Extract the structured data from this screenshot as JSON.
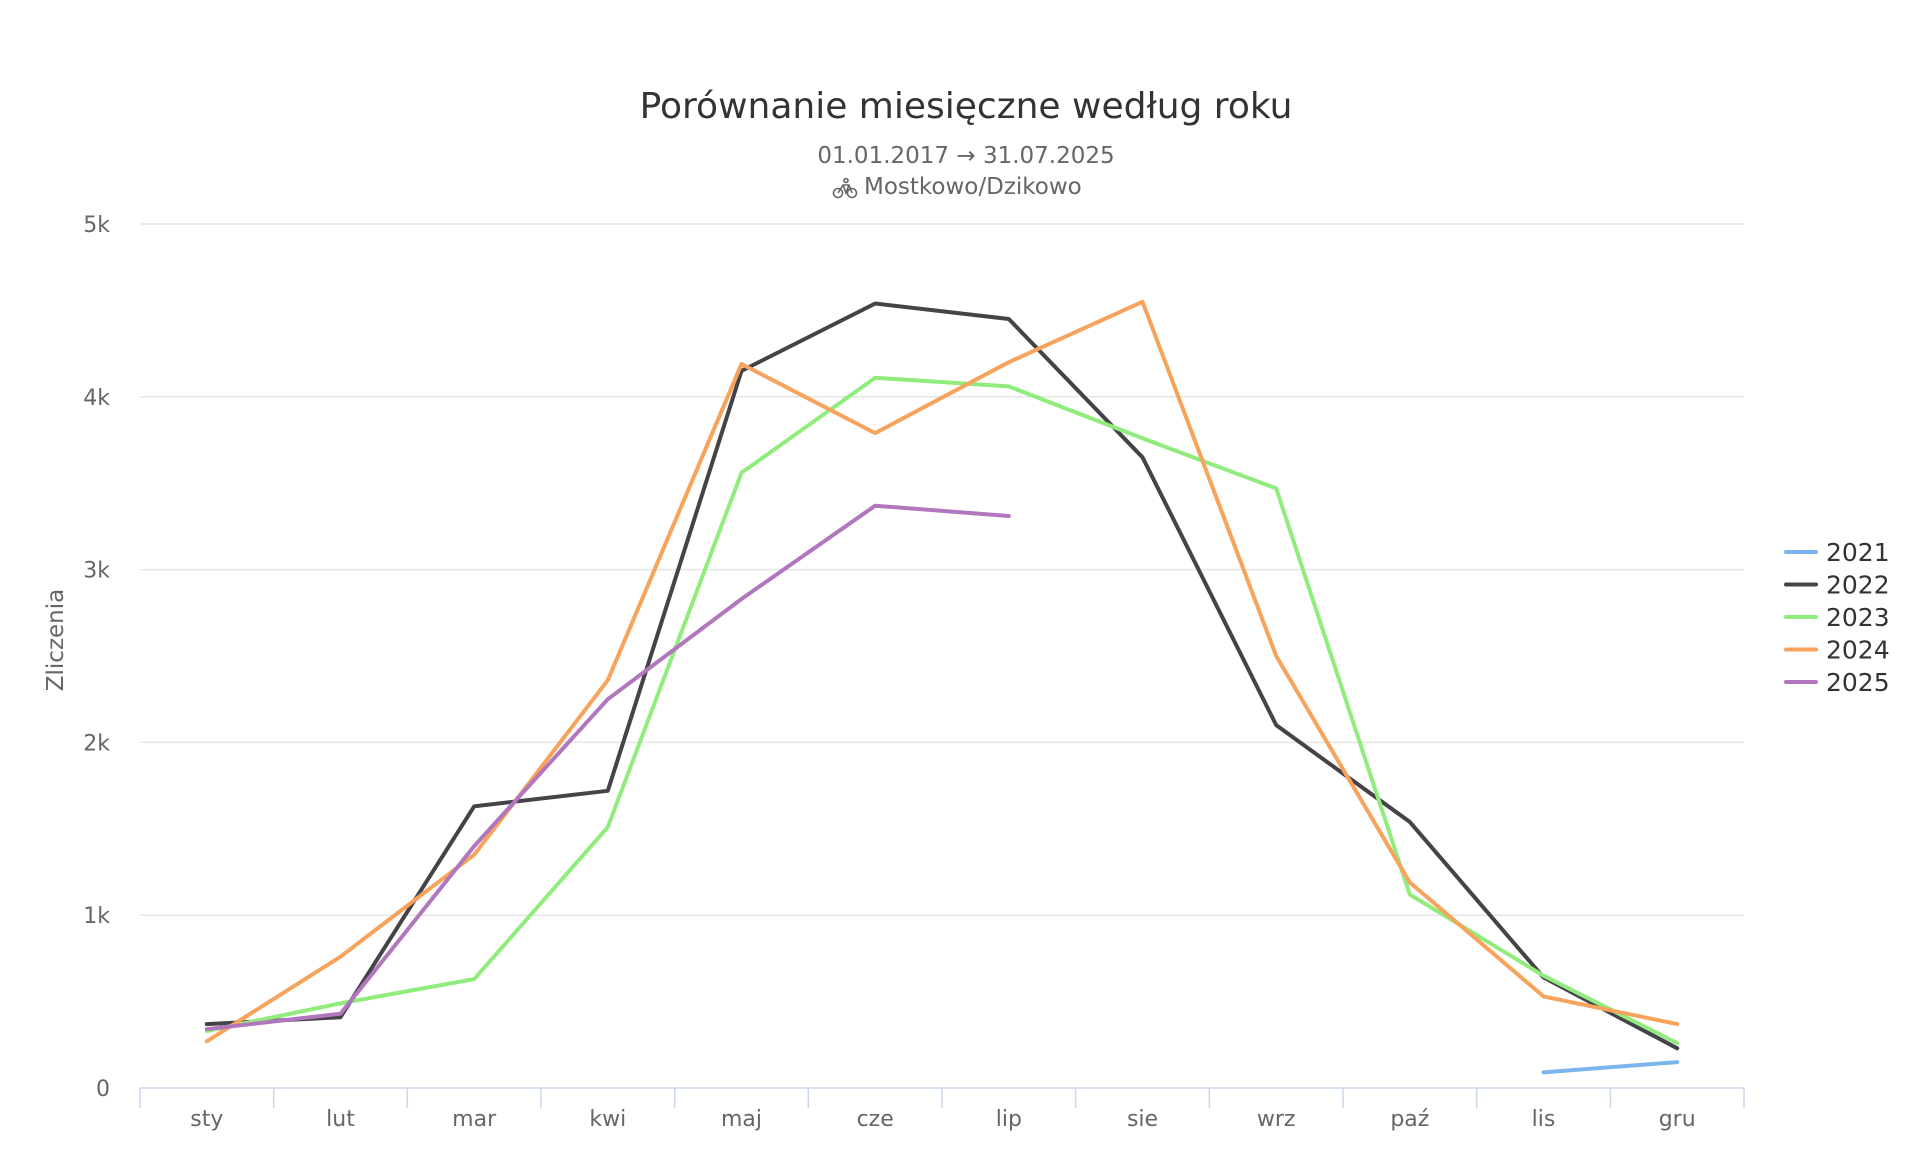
{
  "chart_data": {
    "type": "line",
    "title": "Porównanie miesięczne według roku",
    "subtitle_range": "01.01.2017 → 31.07.2025",
    "subtitle_station": "Mostkowo/Dzikowo",
    "subtitle_icon": "bicycle-icon",
    "ylabel": "Zliczenia",
    "xlabel": "",
    "ylim": [
      0,
      5000
    ],
    "y_ticks": [
      {
        "value": 0,
        "label": "0"
      },
      {
        "value": 1000,
        "label": "1k"
      },
      {
        "value": 2000,
        "label": "2k"
      },
      {
        "value": 3000,
        "label": "3k"
      },
      {
        "value": 4000,
        "label": "4k"
      },
      {
        "value": 5000,
        "label": "5k"
      }
    ],
    "categories": [
      "sty",
      "lut",
      "mar",
      "kwi",
      "maj",
      "cze",
      "lip",
      "sie",
      "wrz",
      "paź",
      "lis",
      "gru"
    ],
    "grid": true,
    "legend_position": "right",
    "series": [
      {
        "name": "2021",
        "color": "#7cb5ec",
        "values": [
          null,
          null,
          null,
          null,
          null,
          null,
          null,
          null,
          null,
          null,
          90,
          150
        ]
      },
      {
        "name": "2022",
        "color": "#434348",
        "values": [
          370,
          410,
          1630,
          1720,
          4150,
          4540,
          4450,
          3650,
          2100,
          1540,
          640,
          230
        ]
      },
      {
        "name": "2023",
        "color": "#90ed7d",
        "values": [
          330,
          490,
          630,
          1510,
          3560,
          4110,
          4060,
          3760,
          3470,
          1120,
          650,
          260
        ]
      },
      {
        "name": "2024",
        "color": "#f7a35c",
        "values": [
          270,
          760,
          1350,
          2360,
          4190,
          3790,
          4200,
          4550,
          2500,
          1190,
          530,
          370
        ]
      },
      {
        "name": "2025",
        "color": "#b276be",
        "values": [
          340,
          430,
          1400,
          2250,
          2830,
          3370,
          3310,
          null,
          null,
          null,
          null,
          null
        ]
      }
    ]
  }
}
